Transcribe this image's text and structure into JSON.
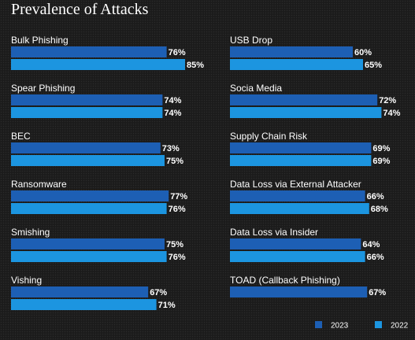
{
  "title": "Prevalence of Attacks",
  "chart_data": {
    "type": "bar",
    "orientation": "horizontal",
    "layout": "two-columns",
    "title": "Prevalence of Attacks",
    "unit": "%",
    "xlim": [
      0,
      100
    ],
    "legend_placement": "bottom-right",
    "grid": false,
    "series": [
      {
        "name": "2023",
        "color": "#1d5fb4"
      },
      {
        "name": "2022",
        "color": "#1c95e0"
      }
    ],
    "columns": [
      [
        {
          "category": "Bulk Phishing",
          "values": [
            76,
            85
          ]
        },
        {
          "category": "Spear Phishing",
          "values": [
            74,
            74
          ]
        },
        {
          "category": "BEC",
          "values": [
            73,
            75
          ]
        },
        {
          "category": "Ransomware",
          "values": [
            77,
            76
          ]
        },
        {
          "category": "Smishing",
          "values": [
            75,
            76
          ]
        },
        {
          "category": "Vishing",
          "values": [
            67,
            71
          ]
        }
      ],
      [
        {
          "category": "USB Drop",
          "values": [
            60,
            65
          ]
        },
        {
          "category": "Socia Media",
          "values": [
            72,
            74
          ]
        },
        {
          "category": "Supply Chain Risk",
          "values": [
            69,
            69
          ]
        },
        {
          "category": "Data Loss via External Attacker",
          "values": [
            66,
            68
          ]
        },
        {
          "category": "Data Loss via Insider",
          "values": [
            64,
            66
          ]
        },
        {
          "category": "TOAD (Callback Phishing)",
          "values": [
            67
          ]
        }
      ]
    ]
  }
}
